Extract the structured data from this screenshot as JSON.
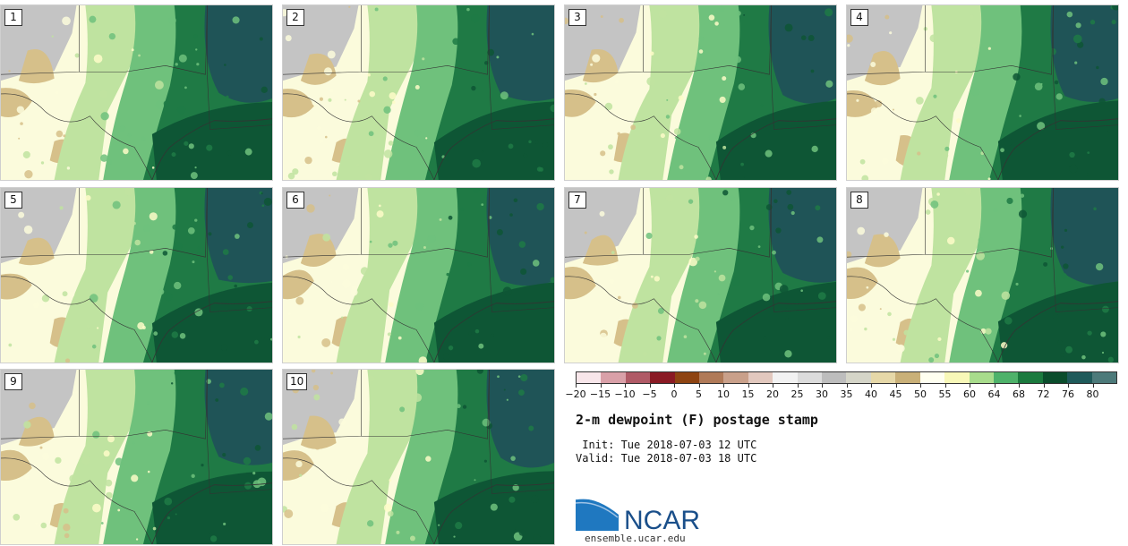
{
  "panels": [
    {
      "label": "1"
    },
    {
      "label": "2"
    },
    {
      "label": "3"
    },
    {
      "label": "4"
    },
    {
      "label": "5"
    },
    {
      "label": "6"
    },
    {
      "label": "7"
    },
    {
      "label": "8"
    },
    {
      "label": "9"
    },
    {
      "label": "10"
    }
  ],
  "colorbar": {
    "tick_labels": [
      "−20",
      "−15",
      "−10",
      "−5",
      "0",
      "5",
      "10",
      "15",
      "20",
      "25",
      "30",
      "35",
      "40",
      "45",
      "50",
      "55",
      "60",
      "64",
      "68",
      "72",
      "76",
      "80"
    ],
    "colors": [
      "#f8e6ea",
      "#d9a0a8",
      "#b05a66",
      "#8a1a24",
      "#8e4412",
      "#b07a58",
      "#c9a08a",
      "#e2c8be",
      "#f2f2f2",
      "#dcdcdc",
      "#bdbdbd",
      "#d5d5c8",
      "#e6d8a8",
      "#c9b078",
      "#fffff0",
      "#f8f8b8",
      "#a8dc8c",
      "#4eb26a",
      "#1b7a3e",
      "#0b4d2c",
      "#1f5a5a",
      "#4d7a7a"
    ]
  },
  "title": "2-m dewpoint (F) postage stamp",
  "init_line": " Init: Tue 2018-07-03 12 UTC",
  "valid_line": "Valid: Tue 2018-07-03 18 UTC",
  "logo": {
    "text": "NCAR",
    "color": "#1a4f8a",
    "swoosh_color": "#1f78c0"
  },
  "site": "ensemble.ucar.edu",
  "map_colors": {
    "gray": "#c4c4c4",
    "tan": "#d6c08a",
    "pale": "#fdfcc8",
    "cream": "#fbfbdc",
    "lightgreen": "#bfe3a0",
    "green": "#6fc17c",
    "darkgreen": "#1f7a45",
    "deepgreen": "#0e5635",
    "teal": "#1f5457"
  }
}
